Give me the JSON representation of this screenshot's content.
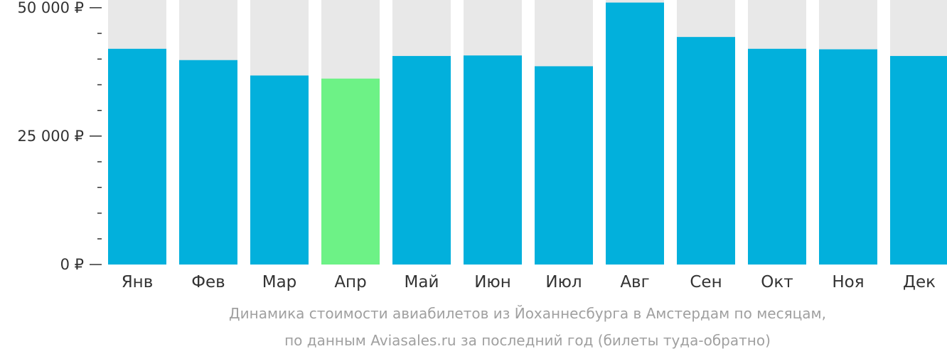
{
  "chart_data": {
    "type": "bar",
    "categories": [
      "Янв",
      "Фев",
      "Мар",
      "Апр",
      "Май",
      "Июн",
      "Июл",
      "Авг",
      "Сен",
      "Окт",
      "Ноя",
      "Дек"
    ],
    "values": [
      42000,
      39800,
      36800,
      36200,
      40600,
      40700,
      38600,
      51000,
      44300,
      42000,
      41900,
      40600
    ],
    "highlight_index": 3,
    "ylim": [
      0,
      51500
    ],
    "yticks": [
      {
        "value": 0,
        "label": "0 ₽"
      },
      {
        "value": 25000,
        "label": "25 000 ₽"
      },
      {
        "value": 50000,
        "label": "50 000 ₽"
      }
    ],
    "minor_tick_step": 5000,
    "colors": {
      "bar": "#02b0dc",
      "highlight": "#6df286",
      "background_bar": "#e8e8e8",
      "axis": "#333333"
    },
    "caption_line1": "Динамика стоимости авиабилетов из Йоханнесбурга в Амстердам по месяцам,",
    "caption_line2": "по данным Aviasales.ru за последний год (билеты туда-обратно)"
  }
}
